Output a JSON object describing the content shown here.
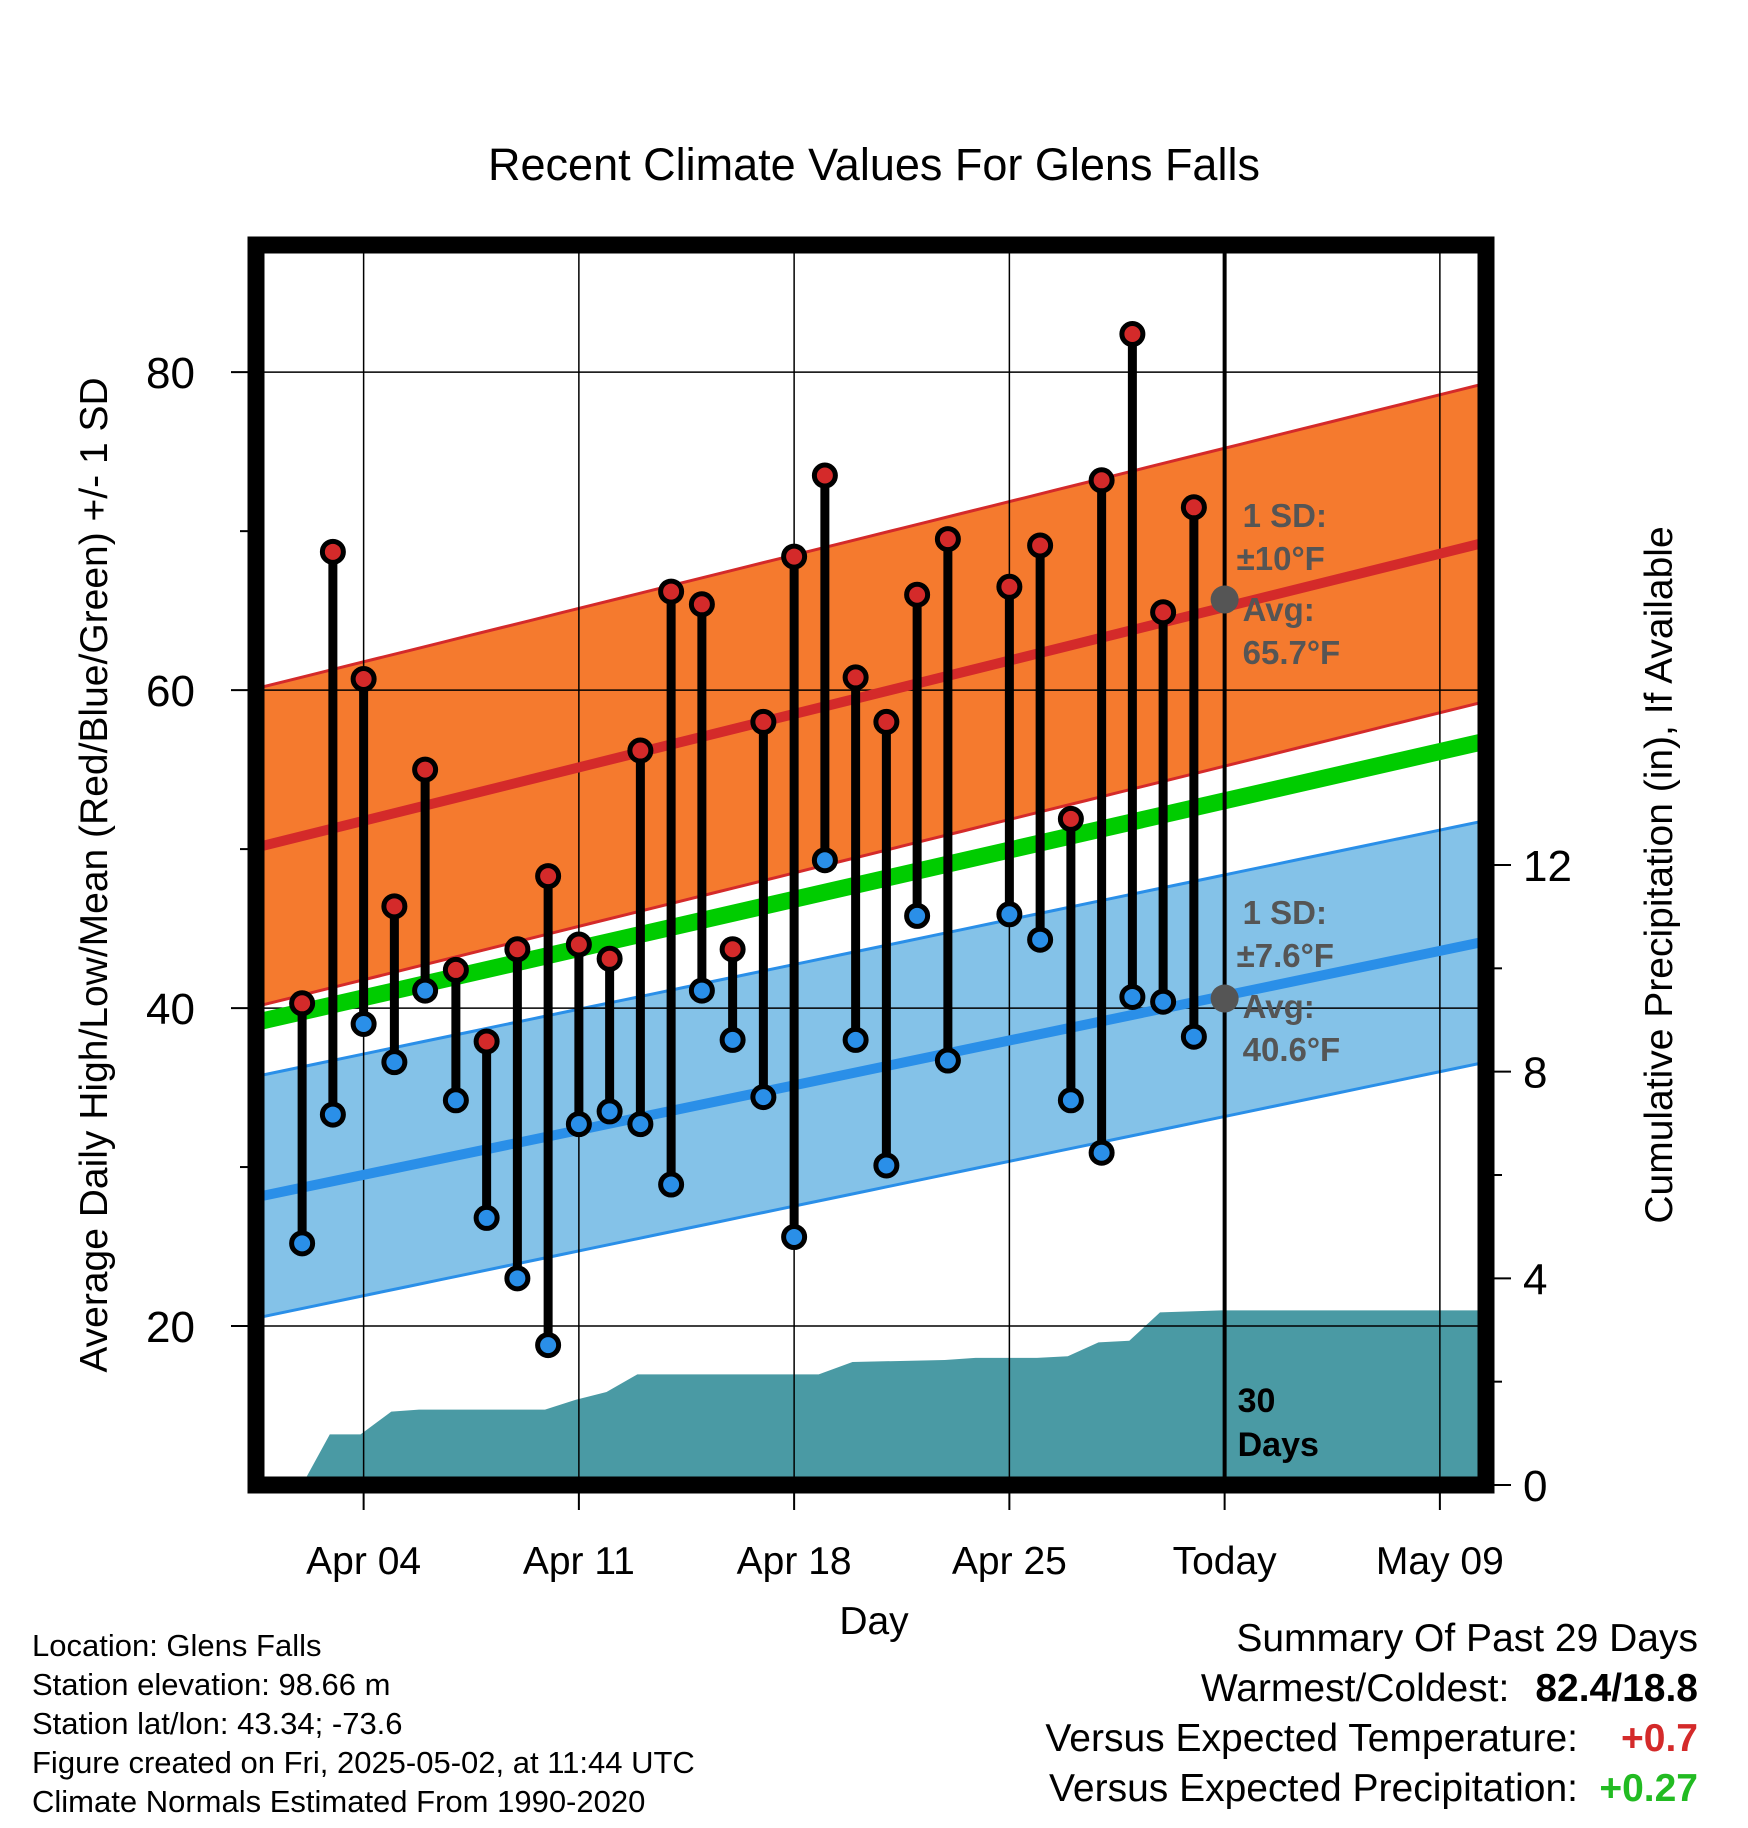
{
  "chart_data": {
    "type": "line",
    "title": "Recent Climate Values For Glens Falls",
    "xlabel": "Day",
    "ylabel": "Average Daily High/Low/Mean (Red/Blue/Green) +/- 1 SD",
    "y2label": "Cumulative Precipitation (in), If Available",
    "ylim": [
      10,
      88
    ],
    "y2lim": [
      0,
      24
    ],
    "y_ticks": [
      "20",
      "40",
      "60",
      "80"
    ],
    "y2_ticks": [
      "0",
      "4",
      "8",
      "12"
    ],
    "xlim": [
      0.5,
      40.5
    ],
    "x_ticks": [
      {
        "day": 4,
        "label": "Apr 04"
      },
      {
        "day": 11,
        "label": "Apr 11"
      },
      {
        "day": 18,
        "label": "Apr 18"
      },
      {
        "day": 25,
        "label": "Apr 25"
      },
      {
        "day": 32,
        "label": "Today"
      },
      {
        "day": 39,
        "label": "May 09"
      }
    ],
    "today_day": 32,
    "today_label": [
      "30",
      "Days"
    ],
    "colors": {
      "high": "#d42a2a",
      "low": "#2a8fe8",
      "mean": "#00cc00",
      "high_band": "#f57a2e",
      "low_band": "#84c2e8",
      "precip": "#4a9aa4",
      "annotation": "#555555"
    },
    "normal_high": {
      "day": [
        0.5,
        40.5
      ],
      "values": [
        50.1,
        69.3
      ]
    },
    "normal_low": {
      "day": [
        0.5,
        40.5
      ],
      "values": [
        28.1,
        44.2
      ]
    },
    "normal_mean": {
      "day": [
        0.5,
        40.5
      ],
      "values": [
        39.1,
        56.8
      ]
    },
    "sd_high": 10,
    "sd_low": 7.6,
    "high_annotation": [
      "1 SD:",
      "±10°F",
      "Avg:",
      "65.7°F"
    ],
    "low_annotation": [
      "1 SD:",
      "±7.6°F",
      "Avg:",
      "40.6°F"
    ],
    "today_avg_high": 65.7,
    "today_avg_low": 40.6,
    "series": [
      {
        "name": "Daily High",
        "day": [
          2,
          3,
          4,
          5,
          6,
          7,
          8,
          9,
          10,
          11,
          12,
          13,
          14,
          15,
          16,
          17,
          18,
          19,
          20,
          21,
          22,
          23,
          25,
          26,
          27,
          28,
          29,
          30,
          31
        ],
        "values": [
          40.3,
          68.7,
          60.7,
          46.4,
          55.0,
          42.4,
          37.9,
          43.7,
          48.3,
          44.0,
          43.1,
          56.2,
          66.2,
          65.4,
          43.7,
          58.0,
          68.4,
          73.5,
          60.8,
          58.0,
          66.0,
          69.5,
          66.5,
          69.1,
          51.9,
          73.2,
          82.4,
          64.9,
          71.5
        ]
      },
      {
        "name": "Daily Low",
        "day": [
          2,
          3,
          4,
          5,
          6,
          7,
          8,
          9,
          10,
          11,
          12,
          13,
          14,
          15,
          16,
          17,
          18,
          19,
          20,
          21,
          22,
          23,
          25,
          26,
          27,
          28,
          29,
          30,
          31
        ],
        "values": [
          25.2,
          33.3,
          39.0,
          36.6,
          41.1,
          34.2,
          26.8,
          23.0,
          18.8,
          32.7,
          33.5,
          32.7,
          28.9,
          41.1,
          38.0,
          34.4,
          25.6,
          49.3,
          38.0,
          30.1,
          45.8,
          36.7,
          45.9,
          44.3,
          34.2,
          30.9,
          40.7,
          40.4,
          38.2
        ]
      },
      {
        "name": "Cumulative Precipitation",
        "day": [
          0.5,
          1.3,
          2.0,
          2.9,
          3.9,
          4.9,
          5.8,
          6.9,
          9.9,
          10.9,
          11.9,
          12.9,
          16.9,
          17.9,
          18.8,
          19.9,
          22.9,
          23.9,
          24.9,
          25.9,
          26.9,
          27.9,
          28.9,
          29.9,
          31.9,
          40.5
        ],
        "values": [
          0,
          0,
          0,
          0.98,
          0.98,
          1.42,
          1.46,
          1.46,
          1.46,
          1.65,
          1.8,
          2.14,
          2.14,
          2.14,
          2.14,
          2.38,
          2.42,
          2.46,
          2.46,
          2.46,
          2.49,
          2.76,
          2.79,
          3.34,
          3.38,
          3.38
        ]
      }
    ]
  },
  "footer": {
    "location": "Location: Glens Falls",
    "elevation": "Station elevation: 98.66 m",
    "latlon": "Station lat/lon: 43.34; -73.6",
    "created": "Figure created on Fri, 2025-05-02, at 11:44 UTC",
    "normals": "Climate Normals Estimated From 1990-2020"
  },
  "summary": {
    "title": "Summary Of Past 29 Days",
    "warmest_label": "Warmest/Coldest:",
    "warmest_value": "82.4/18.8",
    "temp_label": "Versus Expected Temperature:",
    "temp_value": "+0.7",
    "temp_color": "#d42a2a",
    "precip_label": "Versus Expected Precipitation:",
    "precip_value": "+0.27",
    "precip_color": "#22bb22"
  }
}
